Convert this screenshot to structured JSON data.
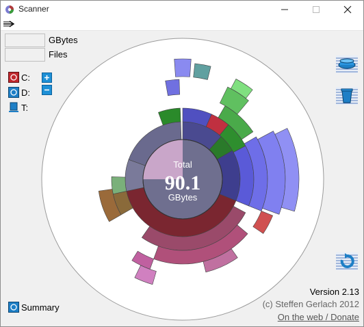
{
  "window": {
    "title": "Scanner"
  },
  "fields": {
    "gbytes_label": "GBytes",
    "files_label": "Files"
  },
  "drives": [
    {
      "label": "C:",
      "icon": "red-drive-icon"
    },
    {
      "label": "D:",
      "icon": "blue-drive-icon"
    },
    {
      "label": "T:",
      "icon": "monitor-drive-icon"
    }
  ],
  "controls": {
    "expand": "plus-icon",
    "collapse": "minus-icon"
  },
  "center": {
    "caption": "Total",
    "value": "90.1",
    "unit": "GBytes"
  },
  "summary": {
    "label": "Summary"
  },
  "footer": {
    "version": "Version 2.13",
    "copyright": "(c) Steffen Gerlach 2012",
    "link": "On the web / Donate"
  },
  "colors": {
    "background": "#f0f0f0",
    "center": "#6f6f8f",
    "accent": "#1e90d6"
  }
}
